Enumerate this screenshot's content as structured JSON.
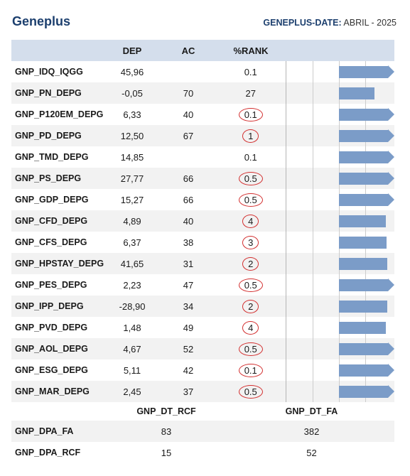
{
  "header": {
    "title": "Geneplus",
    "date_label": "GENEPLUS-DATE:",
    "date_value": "ABRIL - 2025"
  },
  "table": {
    "columns": [
      "",
      "DEP",
      "AC",
      "%RANK",
      ""
    ],
    "rows": [
      {
        "name": "GNP_IDQ_IQGG",
        "dep": "45,96",
        "ac": "",
        "rank": "0.1",
        "circled": false,
        "bar_percent": 100,
        "arrow": true
      },
      {
        "name": "GNP_PN_DEPG",
        "dep": "-0,05",
        "ac": "70",
        "rank": "27",
        "circled": false,
        "bar_percent": 73,
        "arrow": false
      },
      {
        "name": "GNP_P120EM_DEPG",
        "dep": "6,33",
        "ac": "40",
        "rank": "0.1",
        "circled": true,
        "bar_percent": 100,
        "arrow": true
      },
      {
        "name": "GNP_PD_DEPG",
        "dep": "12,50",
        "ac": "67",
        "rank": "1",
        "circled": true,
        "bar_percent": 100,
        "arrow": true
      },
      {
        "name": "GNP_TMD_DEPG",
        "dep": "14,85",
        "ac": "",
        "rank": "0.1",
        "circled": false,
        "bar_percent": 100,
        "arrow": true
      },
      {
        "name": "GNP_PS_DEPG",
        "dep": "27,77",
        "ac": "66",
        "rank": "0.5",
        "circled": true,
        "bar_percent": 100,
        "arrow": true
      },
      {
        "name": "GNP_GDP_DEPG",
        "dep": "15,27",
        "ac": "66",
        "rank": "0.5",
        "circled": true,
        "bar_percent": 100,
        "arrow": true
      },
      {
        "name": "GNP_CFD_DEPG",
        "dep": "4,89",
        "ac": "40",
        "rank": "4",
        "circled": true,
        "bar_percent": 96,
        "arrow": false
      },
      {
        "name": "GNP_CFS_DEPG",
        "dep": "6,37",
        "ac": "38",
        "rank": "3",
        "circled": true,
        "bar_percent": 97,
        "arrow": false
      },
      {
        "name": "GNP_HPSTAY_DEPG",
        "dep": "41,65",
        "ac": "31",
        "rank": "2",
        "circled": true,
        "bar_percent": 98,
        "arrow": false
      },
      {
        "name": "GNP_PES_DEPG",
        "dep": "2,23",
        "ac": "47",
        "rank": "0.5",
        "circled": true,
        "bar_percent": 100,
        "arrow": true
      },
      {
        "name": "GNP_IPP_DEPG",
        "dep": "-28,90",
        "ac": "34",
        "rank": "2",
        "circled": true,
        "bar_percent": 98,
        "arrow": false
      },
      {
        "name": "GNP_PVD_DEPG",
        "dep": "1,48",
        "ac": "49",
        "rank": "4",
        "circled": true,
        "bar_percent": 96,
        "arrow": false
      },
      {
        "name": "GNP_AOL_DEPG",
        "dep": "4,67",
        "ac": "52",
        "rank": "0.5",
        "circled": true,
        "bar_percent": 100,
        "arrow": true
      },
      {
        "name": "GNP_ESG_DEPG",
        "dep": "5,11",
        "ac": "42",
        "rank": "0.1",
        "circled": true,
        "bar_percent": 100,
        "arrow": true
      },
      {
        "name": "GNP_MAR_DEPG",
        "dep": "2,45",
        "ac": "37",
        "rank": "0.5",
        "circled": true,
        "bar_percent": 100,
        "arrow": true
      }
    ]
  },
  "subtable": {
    "columns": [
      "",
      "GNP_DT_RCF",
      "GNP_DT_FA"
    ],
    "rows": [
      {
        "name": "GNP_DPA_FA",
        "rcf": "83",
        "fa": "382"
      },
      {
        "name": "GNP_DPA_RCF",
        "rcf": "15",
        "fa": "52"
      }
    ]
  },
  "colors": {
    "header_bg": "#d4deec",
    "bar": "#7b9cc8",
    "circle": "#d33030",
    "title": "#1c3f6e"
  }
}
